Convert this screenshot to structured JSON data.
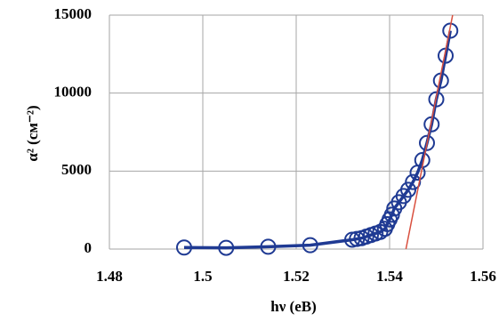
{
  "chart_data": {
    "type": "scatter",
    "x_label": "hν (eB)",
    "y_label": "α² (см⁻²)",
    "xlim": [
      1.48,
      1.56
    ],
    "xticks": [
      1.48,
      1.5,
      1.52,
      1.54,
      1.56
    ],
    "ylim": [
      0,
      15000
    ],
    "yticks": [
      0,
      5000,
      10000,
      15000
    ],
    "grid": true,
    "series": [
      {
        "color": "#1f3a93",
        "marker": "circle",
        "connect": true,
        "x": [
          1.496,
          1.505,
          1.514,
          1.523,
          1.532,
          1.533,
          1.534,
          1.535,
          1.536,
          1.537,
          1.538,
          1.539,
          1.5395,
          1.54,
          1.5405,
          1.541,
          1.542,
          1.543,
          1.544,
          1.545,
          1.546,
          1.547,
          1.548,
          1.549,
          1.55,
          1.551,
          1.552,
          1.553
        ],
        "values": [
          100,
          80,
          150,
          250,
          600,
          650,
          700,
          800,
          900,
          1000,
          1100,
          1300,
          1600,
          1900,
          2200,
          2600,
          3000,
          3400,
          3800,
          4300,
          4900,
          5700,
          6800,
          8000,
          9600,
          10800,
          12400,
          14000
        ]
      },
      {
        "color": "#d9503f",
        "marker": "none",
        "connect": true,
        "x": [
          1.5435,
          1.5535
        ],
        "values": [
          0,
          15000
        ]
      }
    ]
  }
}
